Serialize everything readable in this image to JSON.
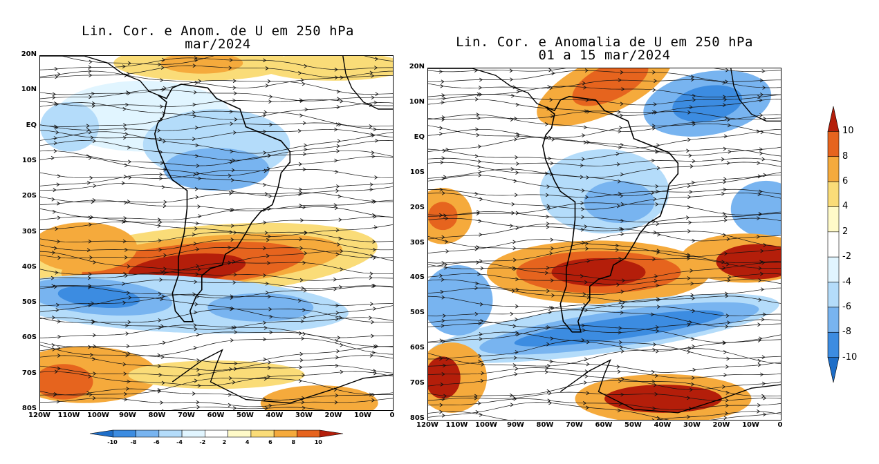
{
  "left_panel": {
    "title_line1": "Lin. Cor. e Anom. de U em 250 hPa",
    "title_line2": "mar/2024",
    "lat_labels": [
      "20N",
      "10N",
      "EQ",
      "10S",
      "20S",
      "30S",
      "40S",
      "50S",
      "60S",
      "70S",
      "80S"
    ],
    "lon_labels": [
      "120W",
      "110W",
      "100W",
      "90W",
      "80W",
      "70W",
      "60W",
      "50W",
      "40W",
      "30W",
      "20W",
      "10W",
      "0"
    ]
  },
  "right_panel": {
    "title_line1": "Lin. Cor. e Anomalia de U em 250 hPa",
    "title_line2": "01 a 15 mar/2024",
    "lat_labels": [
      "20N",
      "10N",
      "EQ",
      "10S",
      "20S",
      "30S",
      "40S",
      "50S",
      "60S",
      "70S",
      "80S"
    ],
    "lon_labels": [
      "120W",
      "110W",
      "100W",
      "90W",
      "80W",
      "70W",
      "60W",
      "50W",
      "40W",
      "30W",
      "20W",
      "10W",
      "0"
    ]
  },
  "colorbar_horizontal": {
    "labels": [
      "-10",
      "-8",
      "-6",
      "-4",
      "-2",
      "2",
      "4",
      "6",
      "8",
      "10"
    ]
  },
  "colorbar_vertical": {
    "labels": [
      "10",
      "8",
      "6",
      "4",
      "2",
      "-2",
      "-4",
      "-6",
      "-8",
      "-10"
    ]
  },
  "colors": {
    "neg10": "#1e6ec8",
    "neg8": "#3c8ce1",
    "neg6": "#78b4f0",
    "neg4": "#b4dcfa",
    "neg2": "#e1f5ff",
    "zero": "#ffffff",
    "pos2": "#fffac8",
    "pos4": "#fadc78",
    "pos6": "#f5aa3c",
    "pos8": "#e6641e",
    "pos10": "#b41e0a"
  }
}
